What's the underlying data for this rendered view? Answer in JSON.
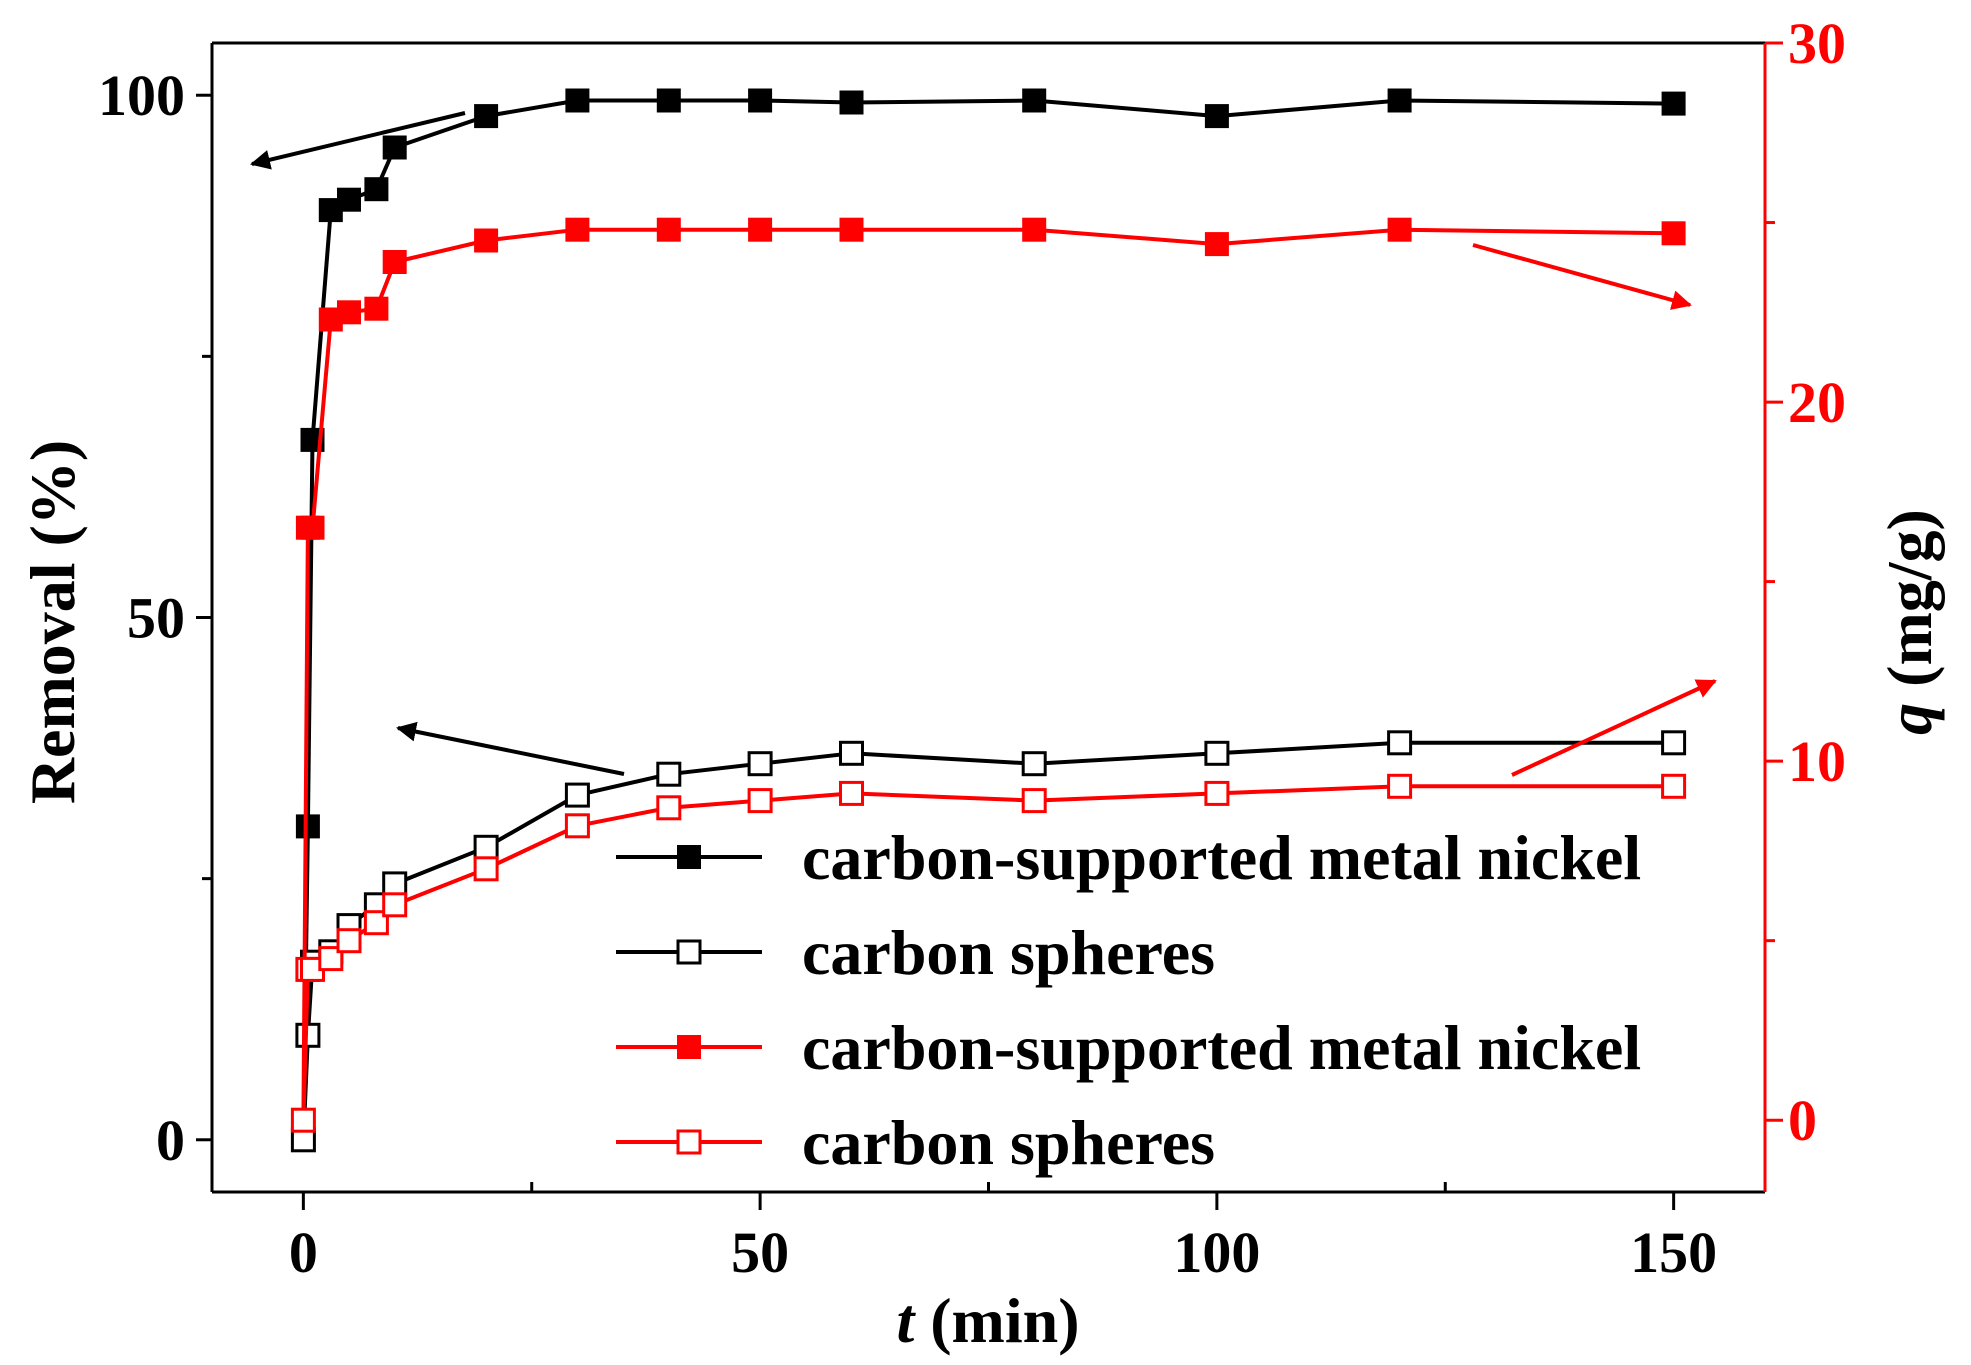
{
  "chart_data": {
    "type": "line",
    "x_axis": {
      "label_var": "t",
      "label_unit": " (min)",
      "range": [
        -10,
        160
      ],
      "major_ticks": [
        0,
        50,
        100,
        150
      ],
      "tick_labels": [
        "0",
        "50",
        "100",
        "150"
      ],
      "minor_ticks": [
        25,
        75,
        125
      ]
    },
    "y_axis_left": {
      "label": "Removal (%)",
      "range": [
        -5,
        105
      ],
      "major_ticks": [
        0,
        50,
        100
      ],
      "tick_labels": [
        "0",
        "50",
        "100"
      ],
      "minor_ticks": [
        25,
        75
      ],
      "color": "#000000"
    },
    "y_axis_right": {
      "label_var": "q",
      "label_unit": " (mg/g)",
      "range": [
        -2,
        30
      ],
      "major_ticks": [
        0,
        10,
        20,
        30
      ],
      "tick_labels": [
        "0",
        "10",
        "20",
        "30"
      ],
      "minor_ticks": [
        5,
        15,
        25
      ],
      "color": "#ff0000"
    },
    "x": [
      0,
      0.5,
      1,
      3,
      5,
      8,
      10,
      20,
      30,
      40,
      50,
      60,
      80,
      100,
      120,
      150
    ],
    "series": [
      {
        "name": "carbon-supported metal nickel",
        "axis": "left",
        "color": "#000000",
        "marker": "filled-square",
        "values": [
          0,
          30,
          67,
          89,
          90,
          91,
          95,
          98,
          99.5,
          99.5,
          99.5,
          99.3,
          99.5,
          98,
          99.5,
          99.2
        ]
      },
      {
        "name": "carbon spheres",
        "axis": "left",
        "color": "#000000",
        "marker": "open-square",
        "values": [
          0,
          10,
          17,
          18,
          20.5,
          22.5,
          24.5,
          28,
          33,
          35,
          36,
          37,
          36,
          37,
          38,
          38
        ]
      },
      {
        "name": "carbon-supported metal nickel",
        "axis": "right",
        "color": "#ff0000",
        "marker": "filled-square",
        "values": [
          0,
          16.5,
          16.5,
          22.3,
          22.5,
          22.6,
          23.9,
          24.5,
          24.8,
          24.8,
          24.8,
          24.8,
          24.8,
          24.4,
          24.8,
          24.7
        ]
      },
      {
        "name": "carbon spheres",
        "axis": "right",
        "color": "#ff0000",
        "marker": "open-square",
        "values": [
          0,
          4.2,
          4.2,
          4.5,
          5,
          5.5,
          6,
          7,
          8.2,
          8.7,
          8.9,
          9.1,
          8.9,
          9.1,
          9.3,
          9.3
        ]
      }
    ],
    "legend": {
      "position": "lower-right",
      "entries": [
        "carbon-supported metal nickel",
        "carbon spheres",
        "carbon-supported metal nickel",
        "carbon spheres"
      ]
    },
    "annotations": "four arrows indicating which axis each curve belongs to"
  }
}
